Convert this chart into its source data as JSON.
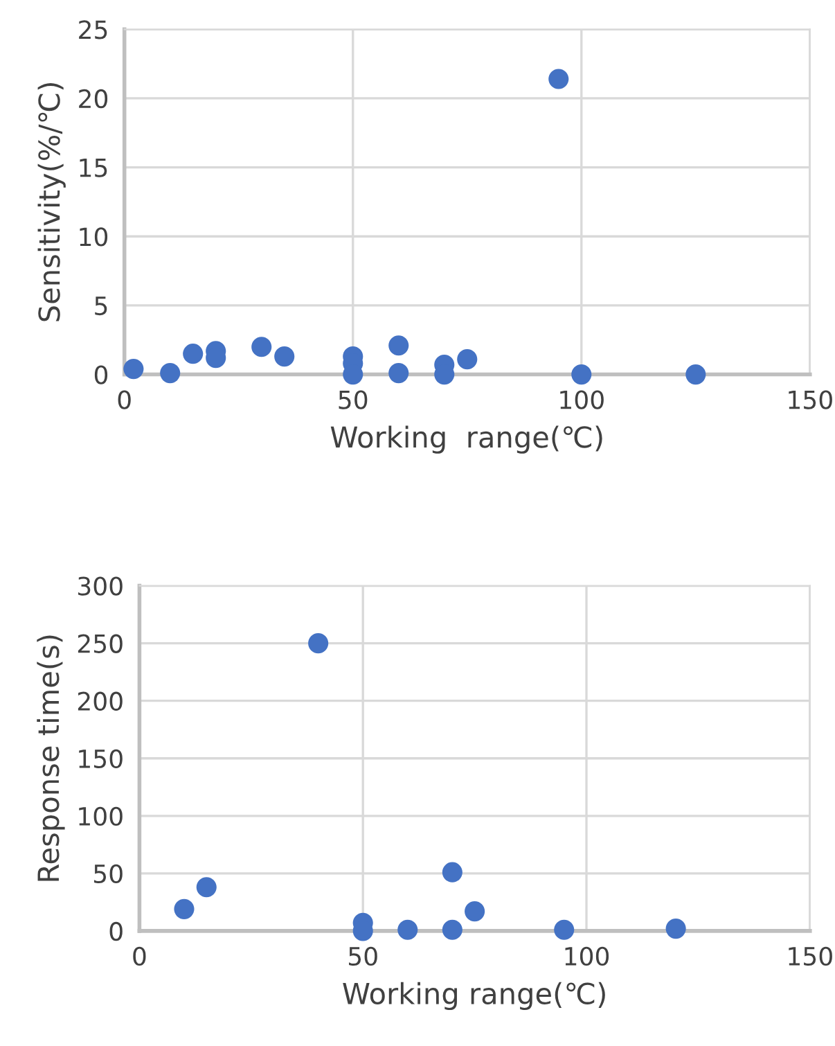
{
  "chart_data": [
    {
      "type": "scatter",
      "xlabel": "Working  range(℃)",
      "ylabel": "Sensitivity(%/℃)",
      "xlim": [
        0,
        150
      ],
      "xticks": [
        0,
        50,
        100,
        150
      ],
      "ylim": [
        0,
        25
      ],
      "yticks": [
        0,
        5,
        10,
        15,
        20,
        25
      ],
      "grid": true,
      "marker": "circle",
      "series": [
        {
          "color": "#4472c4",
          "x": [
            2,
            10,
            15,
            20,
            20,
            30,
            35,
            50,
            50,
            50,
            60,
            60,
            70,
            70,
            75,
            95,
            100,
            125
          ],
          "values": [
            0.4,
            0.1,
            1.5,
            1.7,
            1.2,
            2.0,
            1.3,
            1.3,
            0.8,
            0.0,
            2.1,
            0.1,
            0.7,
            0.0,
            1.1,
            21.4,
            0.0,
            0.0
          ]
        }
      ]
    },
    {
      "type": "scatter",
      "xlabel": "Working range(℃)",
      "ylabel": "Response time(s)",
      "xlim": [
        0,
        150
      ],
      "xticks": [
        0,
        50,
        100,
        150
      ],
      "ylim": [
        0,
        300
      ],
      "yticks": [
        0,
        50,
        100,
        150,
        200,
        250,
        300
      ],
      "grid": true,
      "marker": "circle",
      "series": [
        {
          "color": "#4472c4",
          "x": [
            10,
            15,
            40,
            50,
            50,
            60,
            70,
            70,
            75,
            95,
            120
          ],
          "values": [
            19,
            38,
            250,
            7,
            0,
            1,
            51,
            1,
            17,
            1,
            2
          ]
        }
      ]
    }
  ]
}
